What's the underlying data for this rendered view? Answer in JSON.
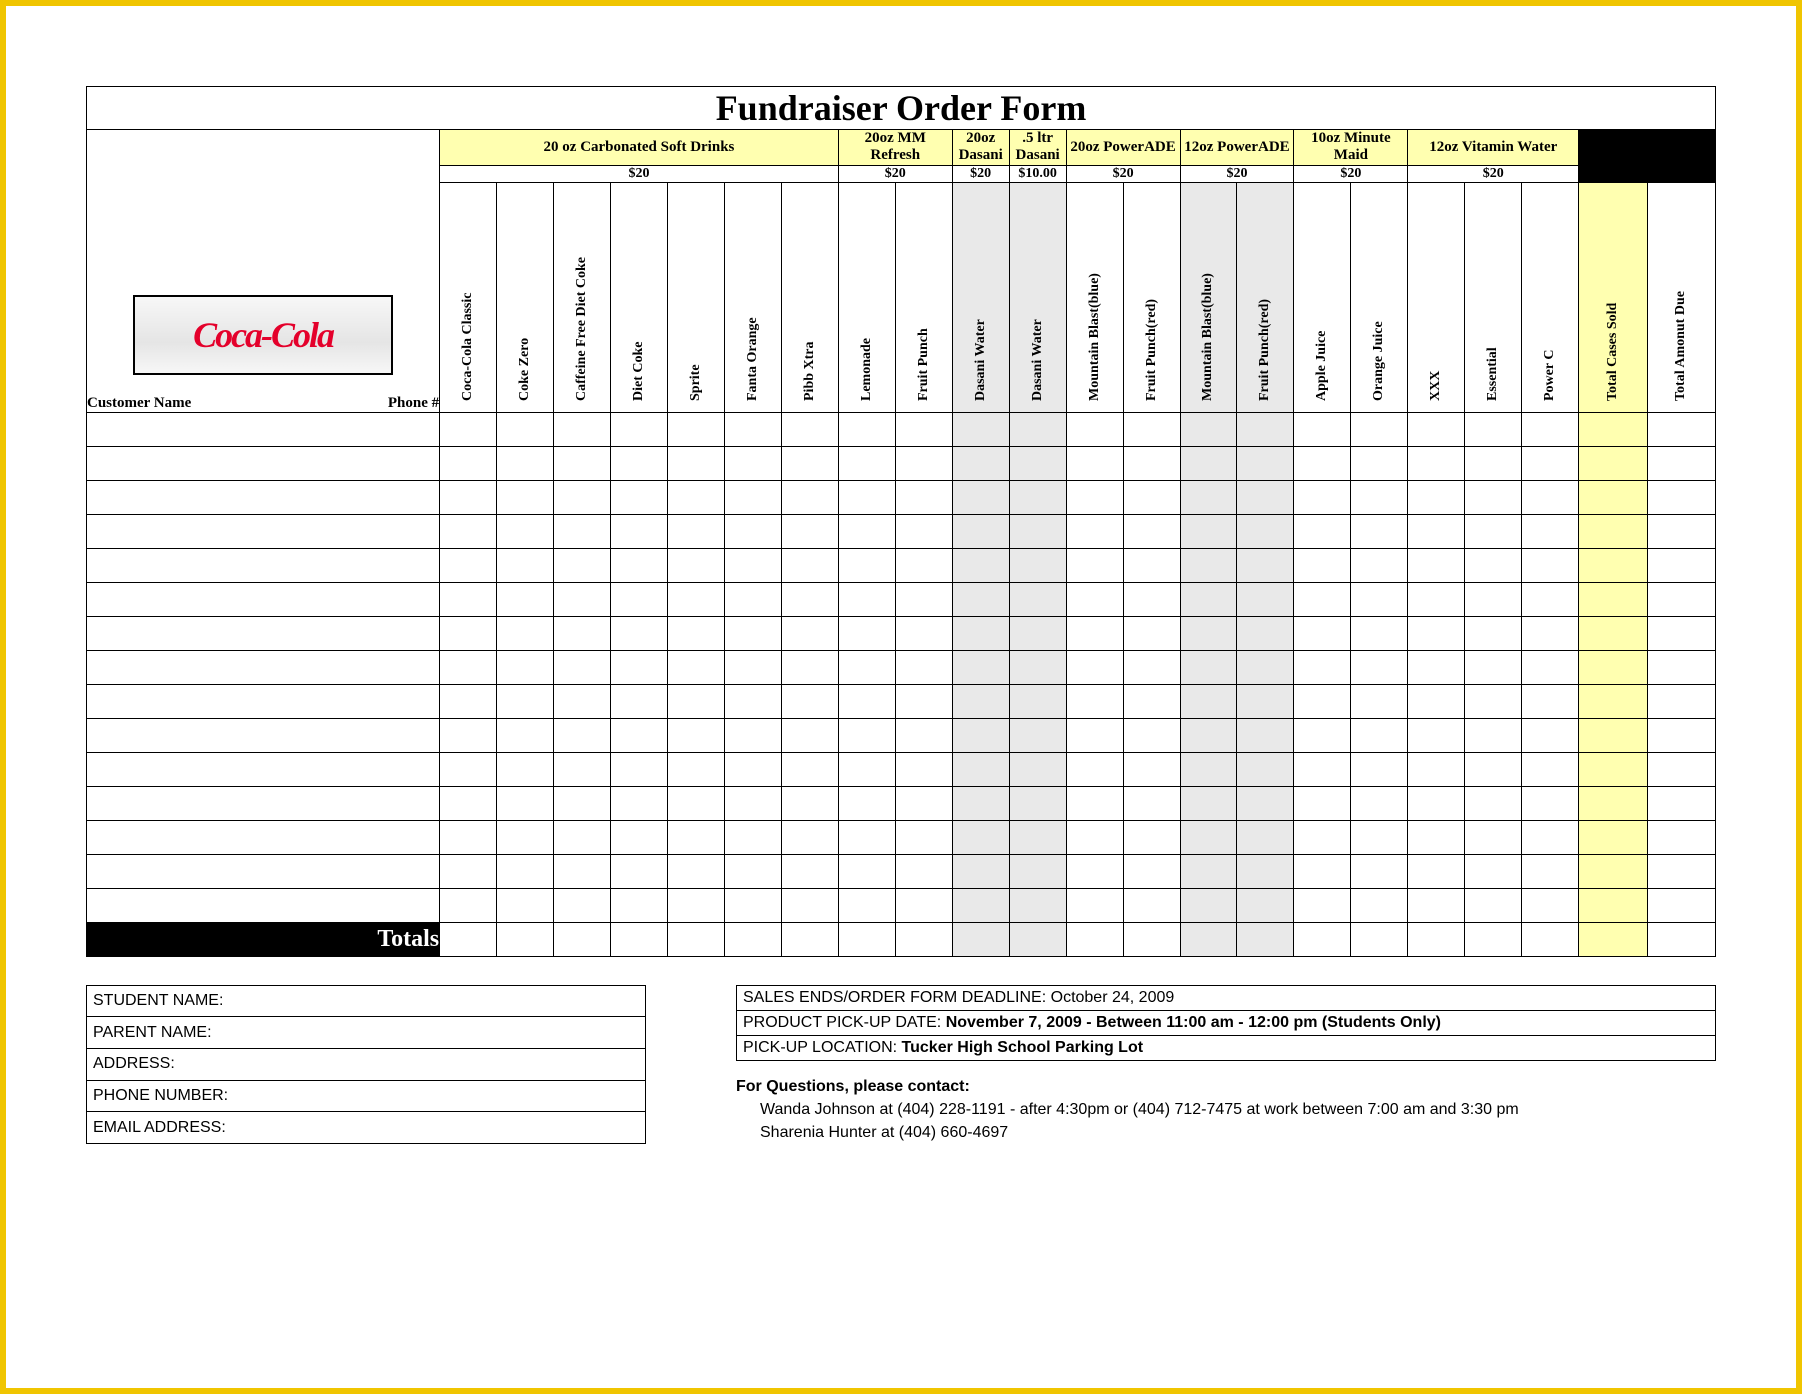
{
  "title": "Fundraiser Order Form",
  "logo_text": "Coca-Cola",
  "categories": [
    {
      "label": "20 oz Carbonated Soft Drinks",
      "price": "$20",
      "span": 7,
      "shade": "none"
    },
    {
      "label": "20oz MM Refresh",
      "price": "$20",
      "span": 2,
      "shade": "none"
    },
    {
      "label": "20oz Dasani",
      "price": "$20",
      "span": 1,
      "shade": "grey"
    },
    {
      "label": ".5 ltr Dasani",
      "price": "$10.00",
      "span": 1,
      "shade": "grey"
    },
    {
      "label": "20oz PowerADE",
      "price": "$20",
      "span": 2,
      "shade": "none"
    },
    {
      "label": "12oz PowerADE",
      "price": "$20",
      "span": 2,
      "shade": "grey"
    },
    {
      "label": "10oz Minute Maid",
      "price": "$20",
      "span": 2,
      "shade": "none"
    },
    {
      "label": "12oz Vitamin Water",
      "price": "$20",
      "span": 3,
      "shade": "none"
    }
  ],
  "products": [
    {
      "name": "Coca-Cola Classic",
      "shade": "none"
    },
    {
      "name": "Coke Zero",
      "shade": "none"
    },
    {
      "name": "Caffeine Free Diet Coke",
      "shade": "none"
    },
    {
      "name": "Diet Coke",
      "shade": "none"
    },
    {
      "name": "Sprite",
      "shade": "none"
    },
    {
      "name": "Fanta Orange",
      "shade": "none"
    },
    {
      "name": "Pibb Xtra",
      "shade": "none"
    },
    {
      "name": "Lemonade",
      "shade": "none"
    },
    {
      "name": "Fruit Punch",
      "shade": "none"
    },
    {
      "name": "Dasani Water",
      "shade": "grey"
    },
    {
      "name": "Dasani Water",
      "shade": "grey"
    },
    {
      "name": "Mountain Blast(blue)",
      "shade": "none"
    },
    {
      "name": "Fruit Punch(red)",
      "shade": "none"
    },
    {
      "name": "Mountain Blast(blue)",
      "shade": "grey"
    },
    {
      "name": "Fruit Punch(red)",
      "shade": "grey"
    },
    {
      "name": "Apple Juice",
      "shade": "none"
    },
    {
      "name": "Orange Juice",
      "shade": "none"
    },
    {
      "name": "XXX",
      "shade": "none"
    },
    {
      "name": "Essential",
      "shade": "none"
    },
    {
      "name": "Power C",
      "shade": "none"
    }
  ],
  "total_cols": [
    {
      "name": "Total Cases Sold",
      "shade": "yellow"
    },
    {
      "name": "Total Amonut Due",
      "shade": "none"
    }
  ],
  "left_header_customer": "Customer Name",
  "left_header_phone": "Phone #",
  "totals_label": "Totals",
  "row_count": 15,
  "info_left": [
    "STUDENT NAME:",
    "PARENT NAME:",
    "ADDRESS:",
    "PHONE NUMBER:",
    "EMAIL ADDRESS:"
  ],
  "info_right": {
    "deadline_label": "SALES ENDS/ORDER FORM DEADLINE:",
    "deadline_value": "October 24, 2009",
    "pickup_date_label": "PRODUCT PICK-UP DATE:",
    "pickup_date_value": "November 7, 2009 - Between 11:00 am - 12:00 pm (Students Only)",
    "pickup_loc_label": "PICK-UP LOCATION:",
    "pickup_loc_value": "Tucker High School Parking Lot"
  },
  "contact": {
    "header": "For Questions, please contact:",
    "line1": "Wanda Johnson at (404) 228-1191 - after 4:30pm or  (404) 712-7475 at work between 7:00 am and 3:30 pm",
    "line2": "Sharenia Hunter at (404) 660-4697"
  },
  "colors": {
    "frame_border": "#f0c500",
    "category_bg": "#ffffb0",
    "grey_bg": "#e9e9e9",
    "logo_red": "#e4002b",
    "black": "#000000",
    "white": "#ffffff"
  },
  "col_widths": {
    "customer": 310,
    "product": 50,
    "total": 60
  }
}
